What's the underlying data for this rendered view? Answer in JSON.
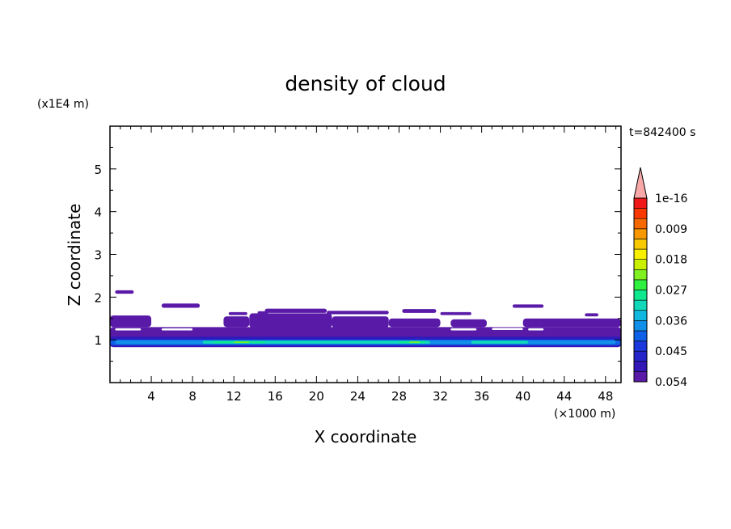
{
  "chart_data": {
    "type": "heatmap",
    "title": "density of cloud",
    "xlabel": "X coordinate",
    "ylabel": "Z coordinate",
    "x_unit": "(×1000 m)",
    "y_unit": "(x1E4 m)",
    "time_label": "t=842400 s",
    "xlim": [
      0,
      49.5
    ],
    "ylim": [
      0,
      6
    ],
    "x_ticks": [
      4,
      8,
      12,
      16,
      20,
      24,
      28,
      32,
      36,
      40,
      44,
      48
    ],
    "x_tick_labels": [
      "4",
      "8",
      "12",
      "16",
      "20",
      "24",
      "28",
      "32",
      "36",
      "40",
      "44",
      "48"
    ],
    "y_ticks": [
      1,
      2,
      3,
      4,
      5
    ],
    "y_tick_labels": [
      "1",
      "2",
      "3",
      "4",
      "5"
    ],
    "colorbar": {
      "label_values": [
        0.054,
        0.045,
        0.036,
        0.027,
        0.018,
        0.009,
        1e-16
      ],
      "labels": [
        "0.054",
        "0.045",
        "0.036",
        "0.027",
        "0.018",
        "0.009",
        "1e-16"
      ],
      "levels": [
        "#5a1aa8",
        "#3318b8",
        "#2424c8",
        "#1a38dc",
        "#0f60e8",
        "#1090e8",
        "#10b8e0",
        "#10d8b8",
        "#10e890",
        "#30f040",
        "#80f020",
        "#c8f000",
        "#f8f000",
        "#f8c800",
        "#f89800",
        "#f86800",
        "#f83800",
        "#f01818"
      ],
      "overflow_color": "#f8a8a8"
    },
    "regions": [
      {
        "level": 0,
        "x0": 0.5,
        "x1": 2.3,
        "z0": 2.08,
        "z1": 2.16
      },
      {
        "level": 0,
        "x0": 5.0,
        "x1": 8.7,
        "z0": 1.75,
        "z1": 1.85
      },
      {
        "level": 0,
        "x0": 11.5,
        "x1": 13.3,
        "z0": 1.58,
        "z1": 1.65
      },
      {
        "level": 0,
        "x0": 14.3,
        "x1": 15.3,
        "z0": 1.6,
        "z1": 1.67
      },
      {
        "level": 0,
        "x0": 15.0,
        "x1": 21.0,
        "z0": 1.63,
        "z1": 1.73
      },
      {
        "level": 0,
        "x0": 21.0,
        "x1": 27.0,
        "z0": 1.6,
        "z1": 1.68
      },
      {
        "level": 0,
        "x0": 28.3,
        "x1": 31.6,
        "z0": 1.63,
        "z1": 1.72
      },
      {
        "level": 0,
        "x0": 32.0,
        "x1": 35.0,
        "z0": 1.58,
        "z1": 1.65
      },
      {
        "level": 0,
        "x0": 39.0,
        "x1": 42.0,
        "z0": 1.75,
        "z1": 1.83
      },
      {
        "level": 0,
        "x0": 46.0,
        "x1": 47.3,
        "z0": 1.55,
        "z1": 1.62
      },
      {
        "level": 0,
        "x0": 0.0,
        "x1": 4.0,
        "z0": 1.3,
        "z1": 1.57
      },
      {
        "level": 0,
        "x0": 11.0,
        "x1": 13.5,
        "z0": 1.3,
        "z1": 1.55
      },
      {
        "level": 0,
        "x0": 13.5,
        "x1": 21.5,
        "z0": 1.28,
        "z1": 1.62
      },
      {
        "level": 0,
        "x0": 21.5,
        "x1": 27.0,
        "z0": 1.28,
        "z1": 1.55
      },
      {
        "level": 0,
        "x0": 27.0,
        "x1": 32.0,
        "z0": 1.3,
        "z1": 1.5
      },
      {
        "level": 0,
        "x0": 33.0,
        "x1": 36.5,
        "z0": 1.3,
        "z1": 1.48
      },
      {
        "level": 0,
        "x0": 40.0,
        "x1": 49.5,
        "z0": 1.3,
        "z1": 1.5
      },
      {
        "level": 0,
        "x0": 0.0,
        "x1": 49.5,
        "z0": 0.83,
        "z1": 1.3
      },
      {
        "level": 1,
        "x0": 0.0,
        "x1": 49.5,
        "z0": 0.83,
        "z1": 1.08
      },
      {
        "level": 2,
        "x0": 0.0,
        "x1": 49.5,
        "z0": 0.86,
        "z1": 1.03
      },
      {
        "level": 4,
        "x0": 0.0,
        "x1": 49.5,
        "z0": 0.88,
        "z1": 1.0
      },
      {
        "level": 5,
        "x0": 0.5,
        "x1": 49.0,
        "z0": 0.9,
        "z1": 0.99
      },
      {
        "level": 7,
        "x0": 9.0,
        "x1": 31.0,
        "z0": 0.91,
        "z1": 0.98
      },
      {
        "level": 7,
        "x0": 35.0,
        "x1": 40.5,
        "z0": 0.91,
        "z1": 0.98
      },
      {
        "level": 8,
        "x0": 10.0,
        "x1": 15.0,
        "z0": 0.92,
        "z1": 0.97
      },
      {
        "level": 8,
        "x0": 28.0,
        "x1": 30.5,
        "z0": 0.92,
        "z1": 0.97
      },
      {
        "level": 10,
        "x0": 12.0,
        "x1": 13.5,
        "z0": 0.93,
        "z1": 0.96
      },
      {
        "level": 10,
        "x0": 29.0,
        "x1": 30.0,
        "z0": 0.93,
        "z1": 0.96
      }
    ],
    "white_gaps": [
      {
        "x0": 0.5,
        "x1": 3.0,
        "z0": 1.22,
        "z1": 1.27
      },
      {
        "x0": 5.0,
        "x1": 8.0,
        "z0": 1.22,
        "z1": 1.27
      },
      {
        "x0": 33.0,
        "x1": 35.5,
        "z0": 1.22,
        "z1": 1.27
      },
      {
        "x0": 37.0,
        "x1": 40.0,
        "z0": 1.23,
        "z1": 1.28
      },
      {
        "x0": 40.5,
        "x1": 42.0,
        "z0": 1.22,
        "z1": 1.27
      }
    ],
    "grid": false
  }
}
